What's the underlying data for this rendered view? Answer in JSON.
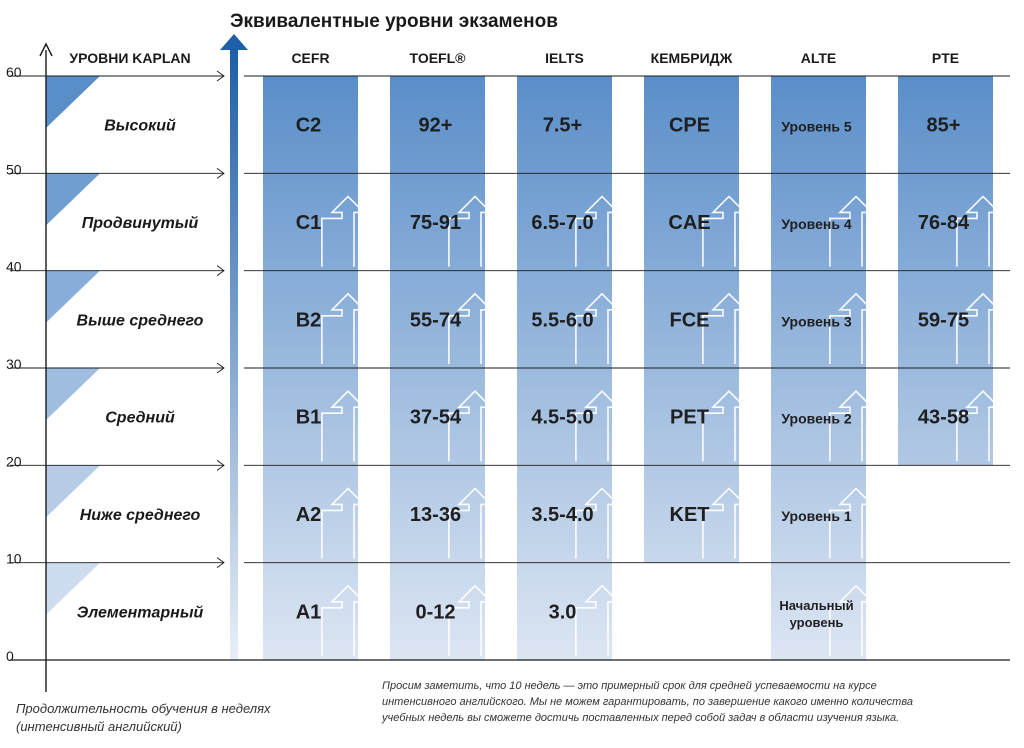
{
  "chart_data": {
    "type": "table",
    "title": "Эквивалентные уровни экзаменов",
    "ylabel": "",
    "xlabel": "Продолжительность обучения в неделях (интенсивный английский)",
    "xlabel_lines": [
      "Продолжительность обучения в неделях",
      "(интенсивный английский)"
    ],
    "ylim": [
      0,
      60
    ],
    "yticks": [
      "0",
      "10",
      "20",
      "30",
      "40",
      "50",
      "60"
    ],
    "kaplan_header": "УРОВНИ KAPLAN",
    "kaplan_levels": [
      {
        "label": "Элементарный",
        "from": 0,
        "to": 10
      },
      {
        "label": "Ниже среднего",
        "from": 10,
        "to": 20
      },
      {
        "label": "Средний",
        "from": 20,
        "to": 30
      },
      {
        "label": "Выше среднего",
        "from": 30,
        "to": 40
      },
      {
        "label": "Продвинутый",
        "from": 40,
        "to": 50
      },
      {
        "label": "Высокий",
        "from": 50,
        "to": 60
      }
    ],
    "exams": [
      {
        "name": "CEFR",
        "from": 0,
        "to": 60,
        "cells": [
          {
            "label": "A1",
            "from": 0,
            "to": 10
          },
          {
            "label": "A2",
            "from": 10,
            "to": 20
          },
          {
            "label": "B1",
            "from": 20,
            "to": 30
          },
          {
            "label": "B2",
            "from": 30,
            "to": 40
          },
          {
            "label": "C1",
            "from": 40,
            "to": 50
          },
          {
            "label": "C2",
            "from": 50,
            "to": 60
          }
        ]
      },
      {
        "name": "TOEFL®",
        "from": 0,
        "to": 60,
        "cells": [
          {
            "label": "0-12",
            "from": 0,
            "to": 10
          },
          {
            "label": "13-36",
            "from": 10,
            "to": 20
          },
          {
            "label": "37-54",
            "from": 20,
            "to": 30
          },
          {
            "label": "55-74",
            "from": 30,
            "to": 40
          },
          {
            "label": "75-91",
            "from": 40,
            "to": 50
          },
          {
            "label": "92+",
            "from": 50,
            "to": 60
          }
        ]
      },
      {
        "name": "IELTS",
        "from": 0,
        "to": 60,
        "cells": [
          {
            "label": "3.0",
            "from": 0,
            "to": 10
          },
          {
            "label": "3.5-4.0",
            "from": 10,
            "to": 20
          },
          {
            "label": "4.5-5.0",
            "from": 20,
            "to": 30
          },
          {
            "label": "5.5-6.0",
            "from": 30,
            "to": 40
          },
          {
            "label": "6.5-7.0",
            "from": 40,
            "to": 50
          },
          {
            "label": "7.5+",
            "from": 50,
            "to": 60
          }
        ]
      },
      {
        "name": "КЕМБРИДЖ",
        "from": 10,
        "to": 60,
        "cells": [
          {
            "label": "KET",
            "from": 10,
            "to": 20
          },
          {
            "label": "PET",
            "from": 20,
            "to": 30
          },
          {
            "label": "FCE",
            "from": 30,
            "to": 40
          },
          {
            "label": "CAE",
            "from": 40,
            "to": 50
          },
          {
            "label": "CPE",
            "from": 50,
            "to": 60
          }
        ]
      },
      {
        "name": "ALTE",
        "from": 0,
        "to": 60,
        "cells": [
          {
            "label": "Начальный уровень",
            "from": 0,
            "to": 10
          },
          {
            "label": "Уровень 1",
            "from": 10,
            "to": 20
          },
          {
            "label": "Уровень 2",
            "from": 20,
            "to": 30
          },
          {
            "label": "Уровень 3",
            "from": 30,
            "to": 40
          },
          {
            "label": "Уровень 4",
            "from": 40,
            "to": 50
          },
          {
            "label": "Уровень 5",
            "from": 50,
            "to": 60
          }
        ]
      },
      {
        "name": "PTE",
        "from": 20,
        "to": 60,
        "cells": [
          {
            "label": "43-58",
            "from": 20,
            "to": 30
          },
          {
            "label": "59-75",
            "from": 30,
            "to": 40
          },
          {
            "label": "76-84",
            "from": 40,
            "to": 50
          },
          {
            "label": "85+",
            "from": 50,
            "to": 60
          }
        ]
      }
    ],
    "note": "Просим заметить, что 10 недель — это примерный срок для средней успеваемости на курсе интенсивного английского. Мы не можем гарантировать, по завершение какого именно количества учебных недель вы сможете достичь поставленных перед собой задач в области изучения языка.",
    "note_lines": [
      "Просим заметить, что 10 недель — это примерный срок для средней успеваемости на курсе",
      "интенсивного английского. Мы не можем гарантировать, по завершение какого именно количества",
      "учебных недель вы сможете достичь поставленных перед собой задач в области изучения языка."
    ],
    "colors": {
      "column_bottom": "#dde6f3",
      "column_top": "#5a8ec9",
      "kaplan_triangle_top": "#5a8ec9",
      "kaplan_triangle_bottom": "#e4ebf5",
      "main_arrow_top": "#1d5fa8",
      "main_arrow_bottom": "#e9eff8",
      "axis": "#1a1a1a",
      "arrow_outline": "#ffffff"
    }
  }
}
